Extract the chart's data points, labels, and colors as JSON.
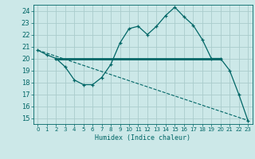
{
  "xlabel": "Humidex (Indice chaleur)",
  "ylabel": "",
  "bg_color": "#cce8e8",
  "grid_color": "#aacccc",
  "line_color": "#006666",
  "xlim": [
    -0.5,
    23.5
  ],
  "ylim": [
    14.5,
    24.5
  ],
  "xticks": [
    0,
    1,
    2,
    3,
    4,
    5,
    6,
    7,
    8,
    9,
    10,
    11,
    12,
    13,
    14,
    15,
    16,
    17,
    18,
    19,
    20,
    21,
    22,
    23
  ],
  "yticks": [
    15,
    16,
    17,
    18,
    19,
    20,
    21,
    22,
    23,
    24
  ],
  "humidex_x": [
    0,
    1,
    2,
    3,
    4,
    5,
    6,
    7,
    8,
    9,
    10,
    11,
    12,
    13,
    14,
    15,
    16,
    17,
    18,
    19,
    20,
    21,
    22,
    23
  ],
  "humidex_y": [
    20.7,
    20.3,
    20.0,
    19.3,
    18.2,
    17.8,
    17.8,
    18.4,
    19.5,
    21.3,
    22.5,
    22.7,
    22.0,
    22.7,
    23.6,
    24.3,
    23.5,
    22.8,
    21.6,
    20.0,
    20.0,
    19.0,
    17.0,
    14.8
  ],
  "trend_x": [
    0,
    23
  ],
  "trend_y": [
    20.7,
    14.8
  ],
  "hline_x": [
    2,
    20
  ],
  "hline_y": [
    20.0,
    20.0
  ]
}
